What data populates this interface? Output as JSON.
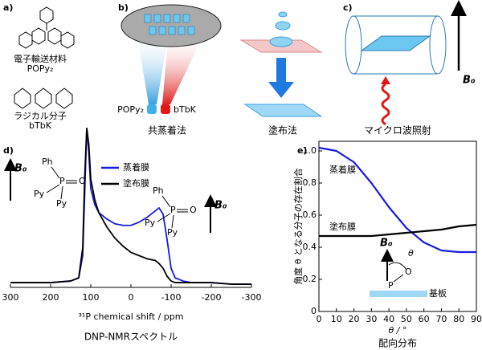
{
  "panels": {
    "a": {
      "label": "a)",
      "material1": "電子輸送材料",
      "name1": "POPy₂",
      "material2": "ラジカル分子",
      "name2": "bTbK"
    },
    "b": {
      "label": "b)",
      "source1": "POPy₂",
      "source2": "bTbK",
      "method1": "共蒸着法",
      "method2": "塗布法"
    },
    "c": {
      "label": "c)",
      "method": "マイクロ波照射",
      "field": "B₀"
    }
  },
  "chart_data": [
    {
      "type": "line",
      "label": "d)",
      "caption": "DNP-NMRスペクトル",
      "xlabel": "³¹P chemical shift / ppm",
      "xlim": [
        300,
        -300
      ],
      "xticks": [
        300,
        200,
        100,
        0,
        -100,
        -200,
        -300
      ],
      "ylim": [
        0,
        1.05
      ],
      "x": [
        300,
        250,
        200,
        150,
        130,
        120,
        115,
        110,
        105,
        100,
        90,
        80,
        60,
        40,
        20,
        0,
        -20,
        -40,
        -60,
        -70,
        -80,
        -90,
        -100,
        -110,
        -130,
        -150,
        -200,
        -250,
        -300
      ],
      "series": [
        {
          "name": "蒸着膜",
          "color": "#1a1ae0",
          "values": [
            0.03,
            0.03,
            0.03,
            0.04,
            0.06,
            0.2,
            0.6,
            1.0,
            0.85,
            0.62,
            0.52,
            0.47,
            0.43,
            0.4,
            0.39,
            0.39,
            0.41,
            0.44,
            0.48,
            0.5,
            0.46,
            0.3,
            0.12,
            0.06,
            0.04,
            0.03,
            0.03,
            0.02,
            0.02
          ]
        },
        {
          "name": "塗布膜",
          "color": "#000000",
          "values": [
            0.03,
            0.03,
            0.03,
            0.04,
            0.06,
            0.25,
            0.7,
            1.0,
            0.9,
            0.68,
            0.55,
            0.47,
            0.38,
            0.31,
            0.26,
            0.22,
            0.2,
            0.18,
            0.17,
            0.15,
            0.12,
            0.07,
            0.04,
            0.03,
            0.03,
            0.03,
            0.03,
            0.02,
            0.02
          ]
        }
      ],
      "molecule": {
        "ph": "Ph",
        "p": "P",
        "o": "O",
        "py": "Py"
      },
      "field": "B₀"
    },
    {
      "type": "line",
      "label": "e)",
      "caption": "配向分布",
      "xlabel": "θ / °",
      "ylabel": "角度 θ となる分子の存在割合",
      "xlim": [
        0,
        90
      ],
      "xticks": [
        0,
        10,
        20,
        30,
        40,
        50,
        60,
        70,
        80,
        90
      ],
      "ylim": [
        0,
        1.06
      ],
      "yticks": [
        0,
        0.2,
        0.4,
        0.6,
        0.8,
        {
          "value": 1,
          "label": "1.0"
        }
      ],
      "x": [
        0,
        10,
        20,
        30,
        40,
        50,
        60,
        70,
        80,
        90
      ],
      "series": [
        {
          "name": "蒸着膜",
          "color": "#1a1ae0",
          "values": [
            1.02,
            1.0,
            0.93,
            0.8,
            0.65,
            0.52,
            0.43,
            0.38,
            0.37,
            0.37
          ]
        },
        {
          "name": "塗布膜",
          "color": "#000000",
          "values": [
            0.47,
            0.47,
            0.47,
            0.47,
            0.48,
            0.49,
            0.5,
            0.51,
            0.53,
            0.54
          ]
        }
      ],
      "field": "B₀",
      "angle": "θ",
      "atom_p": "P",
      "atom_o": "O",
      "substrate": "基板"
    }
  ]
}
